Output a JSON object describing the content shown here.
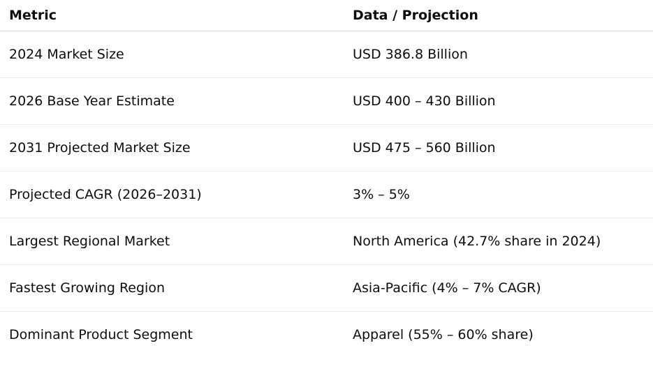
{
  "table": {
    "headers": [
      "Metric",
      "Data / Projection"
    ],
    "rows": [
      [
        "2024 Market Size",
        "USD 386.8 Billion"
      ],
      [
        "2026 Base Year Estimate",
        "USD 400 – 430 Billion"
      ],
      [
        "2031 Projected Market Size",
        "USD 475 – 560 Billion"
      ],
      [
        "Projected CAGR (2026–2031)",
        "3% – 5%"
      ],
      [
        "Largest Regional Market",
        "North America (42.7% share in 2024)"
      ],
      [
        "Fastest Growing Region",
        "Asia-Pacific (4% – 7% CAGR)"
      ],
      [
        "Dominant Product Segment",
        "Apparel (55% – 60% share)"
      ]
    ]
  }
}
